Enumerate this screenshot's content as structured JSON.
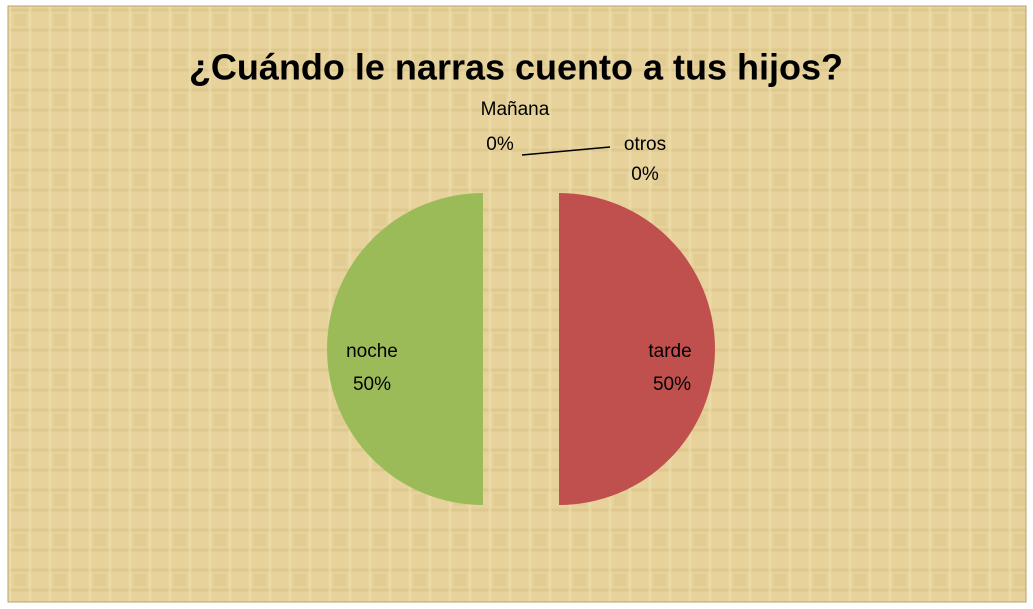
{
  "chart_data": {
    "type": "pie",
    "title": "¿Cuándo le narras cuento a tus hijos?",
    "categories": [
      "Mañana",
      "tarde",
      "noche",
      "otros"
    ],
    "values": [
      0,
      50,
      50,
      0
    ],
    "value_labels": [
      "0%",
      "50%",
      "50%",
      "0%"
    ],
    "colors": [
      "#4f81bd",
      "#c0504d",
      "#9bbb59",
      "#8064a2"
    ]
  }
}
